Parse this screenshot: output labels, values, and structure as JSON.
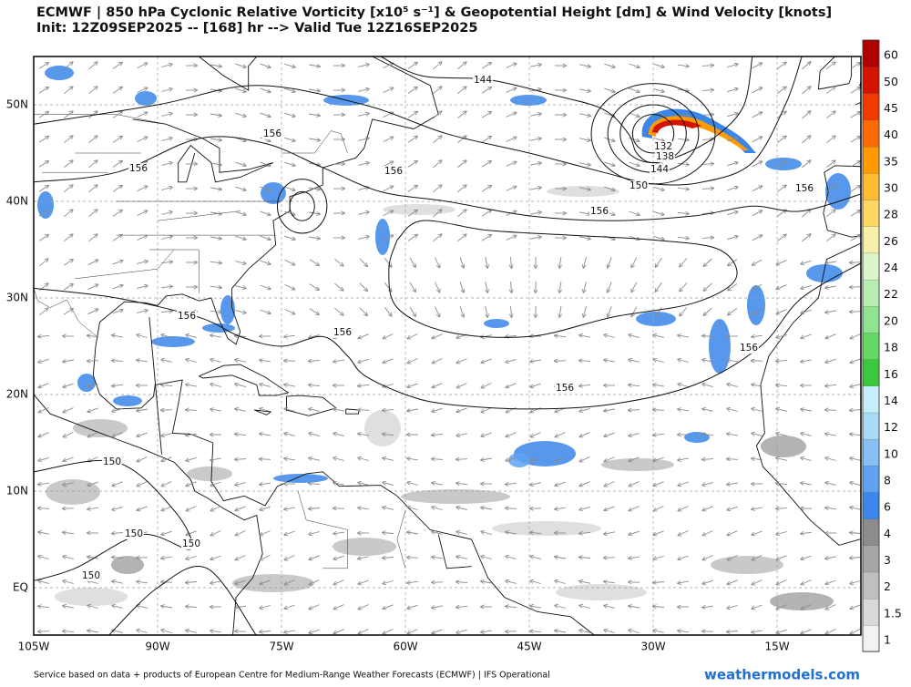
{
  "header": {
    "title": "ECMWF | 850 hPa Cyclonic Relative Vorticity [x10⁵ s⁻¹] & Geopotential Height [dm] & Wind Velocity [knots]",
    "subtitle": "Init: 12Z09SEP2025 -- [168] hr --> Valid Tue 12Z16SEP2025"
  },
  "map": {
    "lon_ticks": [
      {
        "value": -105,
        "label": "105W"
      },
      {
        "value": -90,
        "label": "90W"
      },
      {
        "value": -75,
        "label": "75W"
      },
      {
        "value": -60,
        "label": "60W"
      },
      {
        "value": -45,
        "label": "45W"
      },
      {
        "value": -30,
        "label": "30W"
      },
      {
        "value": -15,
        "label": "15W"
      }
    ],
    "lat_ticks": [
      {
        "value": 50,
        "label": "50N"
      },
      {
        "value": 40,
        "label": "40N"
      },
      {
        "value": 30,
        "label": "30N"
      },
      {
        "value": 20,
        "label": "20N"
      },
      {
        "value": 10,
        "label": "10N"
      },
      {
        "value": 0,
        "label": "EQ"
      }
    ],
    "contour_labels": [
      144,
      156,
      156,
      156,
      150,
      156,
      156,
      132,
      138,
      144,
      156,
      156,
      156,
      156,
      150,
      150,
      150,
      150
    ]
  },
  "colorbar": {
    "levels": [
      1,
      1.5,
      2,
      3,
      4,
      6,
      8,
      10,
      12,
      14,
      16,
      18,
      20,
      22,
      24,
      26,
      28,
      30,
      35,
      40,
      45,
      50,
      60
    ],
    "colors": [
      "#f2f2f2",
      "#d9d9d9",
      "#bfbfbf",
      "#a6a6a6",
      "#8c8c8c",
      "#3a86ea",
      "#5ea2f0",
      "#86c0f4",
      "#a8dcf6",
      "#c6eef8",
      "#3cc83c",
      "#64d864",
      "#90e490",
      "#b8eeb0",
      "#dcf6cc",
      "#f6f0a8",
      "#ffd864",
      "#ffbc32",
      "#ff9a00",
      "#ff6a00",
      "#f03a00",
      "#d41400",
      "#b00000"
    ]
  },
  "footer": {
    "credit": "Service based on data + products of European Centre for Medium-Range Weather Forecasts (ECMWF) | IFS Operational",
    "watermark": "weathermodels.com"
  }
}
